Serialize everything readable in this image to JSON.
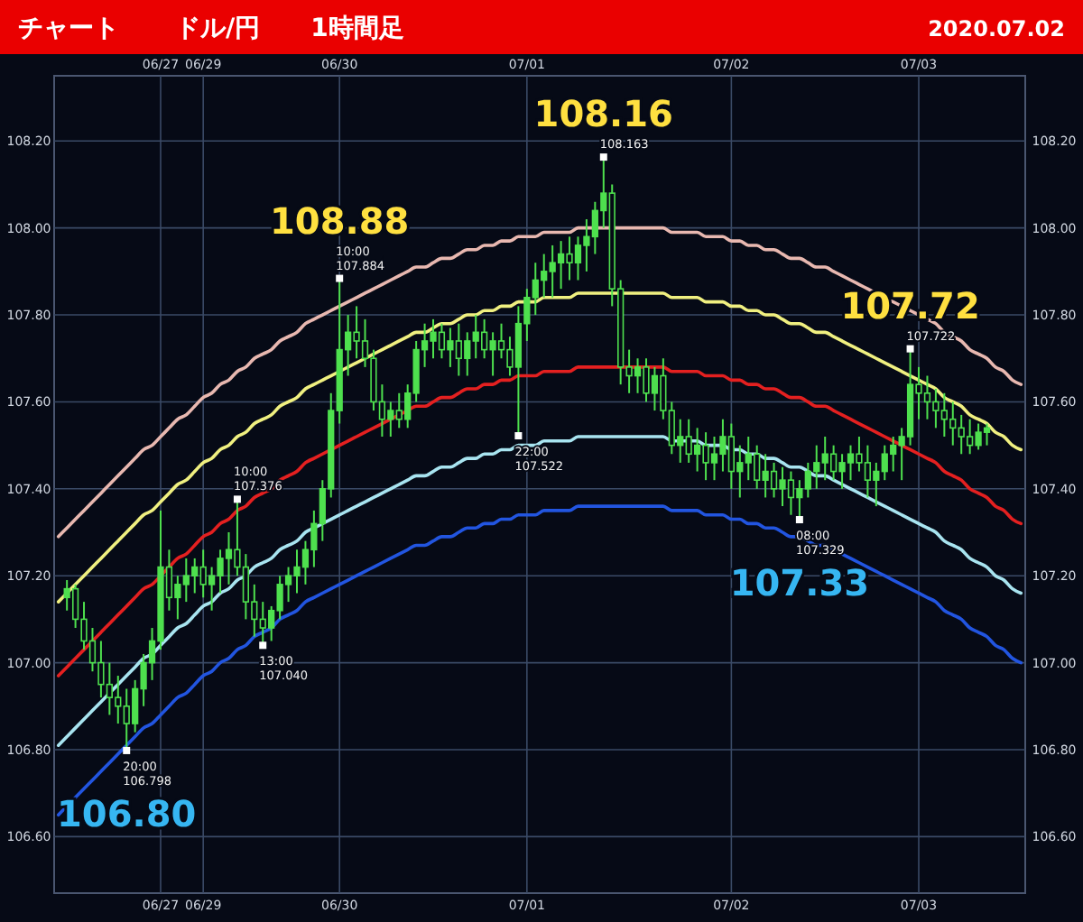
{
  "chart_data": {
    "type": "candlestick",
    "title": "チャート",
    "subtitle": "ドル/円　　1時間足",
    "color": "#4ee04e",
    "grid": true,
    "categories": [
      null,
      null,
      null,
      null,
      null,
      null,
      null,
      null,
      null,
      null,
      null,
      null,
      "06/27",
      null,
      null,
      null,
      null,
      "06/29",
      null,
      null,
      null,
      null,
      null,
      null,
      null,
      null,
      null,
      null,
      null,
      null,
      null,
      null,
      null,
      "06/30",
      null,
      null,
      null,
      null,
      null,
      null,
      null,
      null,
      null,
      null,
      null,
      null,
      null,
      null,
      null,
      null,
      null,
      null,
      null,
      null,
      null,
      "07/01",
      null,
      null,
      null,
      null,
      null,
      null,
      null,
      null,
      null,
      null,
      null,
      null,
      null,
      null,
      null,
      null,
      null,
      null,
      null,
      null,
      null,
      null,
      null,
      "07/02",
      null,
      null,
      null,
      null,
      null,
      null,
      null,
      null,
      null,
      null,
      null,
      null,
      null,
      null,
      null,
      null,
      null,
      null,
      null,
      null,
      null,
      "07/03",
      null,
      null,
      null,
      null,
      null,
      null,
      null,
      null,
      null,
      null,
      null,
      null
    ],
    "ylim": [
      106.47,
      108.35
    ],
    "yticks": [
      {
        "value": 106.6,
        "label": "106.60"
      },
      {
        "value": 106.8,
        "label": "106.80"
      },
      {
        "value": 107,
        "label": "107.00"
      },
      {
        "value": 107.2,
        "label": "107.20"
      },
      {
        "value": 107.4,
        "label": "107.40"
      },
      {
        "value": 107.6,
        "label": "107.60"
      },
      {
        "value": 107.8,
        "label": "107.80"
      },
      {
        "value": 108,
        "label": "108.00"
      },
      {
        "value": 108.2,
        "label": "108.20"
      }
    ],
    "y2lim": [
      106.47,
      108.35
    ],
    "y2ticks": [
      {
        "value": 106.6,
        "label": "106.60"
      },
      {
        "value": 106.8,
        "label": "106.80"
      },
      {
        "value": 107,
        "label": "107.00"
      },
      {
        "value": 107.2,
        "label": "107.20"
      },
      {
        "value": 107.4,
        "label": "107.40"
      },
      {
        "value": 107.6,
        "label": "107.60"
      },
      {
        "value": 107.8,
        "label": "107.80"
      },
      {
        "value": 108,
        "label": "108.00"
      },
      {
        "value": 108.2,
        "label": "108.20"
      }
    ],
    "ohlc": [
      null,
      [
        107.15,
        107.19,
        107.12,
        107.17
      ],
      [
        107.17,
        107.18,
        107.08,
        107.1
      ],
      [
        107.1,
        107.14,
        107.03,
        107.05
      ],
      [
        107.05,
        107.08,
        106.98,
        107.0
      ],
      [
        107.0,
        107.05,
        106.92,
        106.95
      ],
      [
        106.95,
        107.0,
        106.88,
        106.92
      ],
      [
        106.92,
        106.97,
        106.86,
        106.9
      ],
      [
        106.9,
        106.94,
        106.798,
        106.86
      ],
      [
        106.86,
        106.96,
        106.84,
        106.94
      ],
      [
        106.94,
        107.02,
        106.9,
        107.0
      ],
      [
        107.0,
        107.08,
        106.96,
        107.05
      ],
      [
        107.05,
        107.35,
        107.03,
        107.22
      ],
      [
        107.22,
        107.26,
        107.12,
        107.15
      ],
      [
        107.15,
        107.2,
        107.1,
        107.18
      ],
      [
        107.18,
        107.24,
        107.14,
        107.2
      ],
      [
        107.2,
        107.24,
        107.16,
        107.22
      ],
      [
        107.22,
        107.26,
        107.15,
        107.18
      ],
      [
        107.18,
        107.22,
        107.12,
        107.2
      ],
      [
        107.2,
        107.26,
        107.16,
        107.24
      ],
      [
        107.24,
        107.3,
        107.18,
        107.26
      ],
      [
        107.26,
        107.376,
        107.2,
        107.22
      ],
      [
        107.22,
        107.25,
        107.1,
        107.14
      ],
      [
        107.14,
        107.18,
        107.06,
        107.1
      ],
      [
        107.1,
        107.14,
        107.04,
        107.08
      ],
      [
        107.08,
        107.13,
        107.05,
        107.12
      ],
      [
        107.12,
        107.2,
        107.1,
        107.18
      ],
      [
        107.18,
        107.22,
        107.14,
        107.2
      ],
      [
        107.2,
        107.26,
        107.16,
        107.22
      ],
      [
        107.22,
        107.28,
        107.18,
        107.26
      ],
      [
        107.26,
        107.35,
        107.22,
        107.32
      ],
      [
        107.32,
        107.42,
        107.28,
        107.4
      ],
      [
        107.4,
        107.62,
        107.38,
        107.58
      ],
      [
        107.58,
        107.884,
        107.55,
        107.72
      ],
      [
        107.72,
        107.8,
        107.66,
        107.76
      ],
      [
        107.76,
        107.82,
        107.7,
        107.74
      ],
      [
        107.74,
        107.79,
        107.68,
        107.7
      ],
      [
        107.7,
        107.72,
        107.58,
        107.6
      ],
      [
        107.6,
        107.64,
        107.52,
        107.56
      ],
      [
        107.56,
        107.6,
        107.52,
        107.58
      ],
      [
        107.58,
        107.62,
        107.54,
        107.56
      ],
      [
        107.56,
        107.64,
        107.54,
        107.62
      ],
      [
        107.62,
        107.74,
        107.6,
        107.72
      ],
      [
        107.72,
        107.78,
        107.68,
        107.74
      ],
      [
        107.74,
        107.79,
        107.7,
        107.76
      ],
      [
        107.76,
        107.78,
        107.7,
        107.72
      ],
      [
        107.72,
        107.77,
        107.68,
        107.74
      ],
      [
        107.74,
        107.78,
        107.66,
        107.7
      ],
      [
        107.7,
        107.76,
        107.66,
        107.74
      ],
      [
        107.74,
        107.8,
        107.7,
        107.76
      ],
      [
        107.76,
        107.79,
        107.7,
        107.72
      ],
      [
        107.72,
        107.76,
        107.66,
        107.74
      ],
      [
        107.74,
        107.78,
        107.7,
        107.72
      ],
      [
        107.72,
        107.75,
        107.66,
        107.68
      ],
      [
        107.68,
        107.82,
        107.522,
        107.78
      ],
      [
        107.78,
        107.86,
        107.74,
        107.84
      ],
      [
        107.84,
        107.92,
        107.8,
        107.88
      ],
      [
        107.88,
        107.94,
        107.84,
        107.9
      ],
      [
        107.9,
        107.96,
        107.84,
        107.92
      ],
      [
        107.92,
        107.97,
        107.86,
        107.94
      ],
      [
        107.94,
        107.98,
        107.88,
        107.92
      ],
      [
        107.92,
        107.98,
        107.88,
        107.96
      ],
      [
        107.96,
        108.02,
        107.9,
        107.98
      ],
      [
        107.98,
        108.06,
        107.94,
        108.04
      ],
      [
        108.04,
        108.163,
        108.0,
        108.08
      ],
      [
        108.08,
        108.1,
        107.82,
        107.86
      ],
      [
        107.86,
        107.88,
        107.64,
        107.68
      ],
      [
        107.68,
        107.72,
        107.62,
        107.66
      ],
      [
        107.66,
        107.7,
        107.62,
        107.68
      ],
      [
        107.68,
        107.7,
        107.6,
        107.62
      ],
      [
        107.62,
        107.68,
        107.58,
        107.66
      ],
      [
        107.66,
        107.7,
        107.56,
        107.58
      ],
      [
        107.58,
        107.6,
        107.48,
        107.5
      ],
      [
        107.5,
        107.56,
        107.46,
        107.52
      ],
      [
        107.52,
        107.56,
        107.46,
        107.48
      ],
      [
        107.48,
        107.54,
        107.44,
        107.5
      ],
      [
        107.5,
        107.53,
        107.42,
        107.46
      ],
      [
        107.46,
        107.52,
        107.42,
        107.48
      ],
      [
        107.48,
        107.56,
        107.44,
        107.52
      ],
      [
        107.52,
        107.55,
        107.4,
        107.44
      ],
      [
        107.44,
        107.5,
        107.38,
        107.46
      ],
      [
        107.46,
        107.52,
        107.42,
        107.48
      ],
      [
        107.48,
        107.5,
        107.4,
        107.42
      ],
      [
        107.42,
        107.48,
        107.38,
        107.44
      ],
      [
        107.44,
        107.46,
        107.38,
        107.4
      ],
      [
        107.4,
        107.45,
        107.36,
        107.42
      ],
      [
        107.42,
        107.44,
        107.34,
        107.38
      ],
      [
        107.38,
        107.42,
        107.329,
        107.4
      ],
      [
        107.4,
        107.46,
        107.38,
        107.44
      ],
      [
        107.44,
        107.5,
        107.4,
        107.46
      ],
      [
        107.46,
        107.52,
        107.42,
        107.48
      ],
      [
        107.48,
        107.5,
        107.42,
        107.44
      ],
      [
        107.44,
        107.48,
        107.4,
        107.46
      ],
      [
        107.46,
        107.5,
        107.42,
        107.48
      ],
      [
        107.48,
        107.52,
        107.44,
        107.46
      ],
      [
        107.46,
        107.5,
        107.38,
        107.42
      ],
      [
        107.42,
        107.46,
        107.36,
        107.44
      ],
      [
        107.44,
        107.5,
        107.42,
        107.48
      ],
      [
        107.48,
        107.52,
        107.44,
        107.5
      ],
      [
        107.5,
        107.54,
        107.42,
        107.52
      ],
      [
        107.52,
        107.722,
        107.5,
        107.64
      ],
      [
        107.64,
        107.68,
        107.56,
        107.62
      ],
      [
        107.62,
        107.66,
        107.56,
        107.6
      ],
      [
        107.6,
        107.63,
        107.54,
        107.58
      ],
      [
        107.58,
        107.62,
        107.52,
        107.56
      ],
      [
        107.56,
        107.6,
        107.5,
        107.54
      ],
      [
        107.54,
        107.57,
        107.48,
        107.52
      ],
      [
        107.52,
        107.56,
        107.48,
        107.5
      ],
      [
        107.5,
        107.55,
        107.49,
        107.53
      ],
      [
        107.53,
        107.55,
        107.5,
        107.54
      ],
      null,
      null,
      null,
      null
    ],
    "series": [
      {
        "type": "line",
        "color": "#e8b8b0",
        "values": [
          107.29,
          107.31,
          107.33,
          107.35,
          107.37,
          107.39,
          107.41,
          107.43,
          107.45,
          107.47,
          107.49,
          107.5,
          107.52,
          107.54,
          107.56,
          107.57,
          107.59,
          107.61,
          107.62,
          107.64,
          107.65,
          107.67,
          107.68,
          107.7,
          107.71,
          107.72,
          107.74,
          107.75,
          107.76,
          107.78,
          107.79,
          107.8,
          107.81,
          107.82,
          107.83,
          107.84,
          107.85,
          107.86,
          107.87,
          107.88,
          107.89,
          107.9,
          107.91,
          107.91,
          107.92,
          107.93,
          107.93,
          107.94,
          107.95,
          107.95,
          107.96,
          107.96,
          107.97,
          107.97,
          107.98,
          107.98,
          107.98,
          107.99,
          107.99,
          107.99,
          107.99,
          108.0,
          108.0,
          108.0,
          108.0,
          108.0,
          108.0,
          108.0,
          108.0,
          108.0,
          108.0,
          108.0,
          107.99,
          107.99,
          107.99,
          107.99,
          107.98,
          107.98,
          107.98,
          107.97,
          107.97,
          107.96,
          107.96,
          107.95,
          107.95,
          107.94,
          107.93,
          107.93,
          107.92,
          107.91,
          107.91,
          107.9,
          107.89,
          107.88,
          107.87,
          107.86,
          107.85,
          107.84,
          107.83,
          107.82,
          107.81,
          107.8,
          107.79,
          107.78,
          107.76,
          107.75,
          107.74,
          107.72,
          107.71,
          107.7,
          107.68,
          107.67,
          107.65,
          107.64
        ]
      },
      {
        "type": "line",
        "color": "#f0f080",
        "values": [
          107.14,
          107.16,
          107.18,
          107.2,
          107.22,
          107.24,
          107.26,
          107.28,
          107.3,
          107.32,
          107.34,
          107.35,
          107.37,
          107.39,
          107.41,
          107.42,
          107.44,
          107.46,
          107.47,
          107.49,
          107.5,
          107.52,
          107.53,
          107.55,
          107.56,
          107.57,
          107.59,
          107.6,
          107.61,
          107.63,
          107.64,
          107.65,
          107.66,
          107.67,
          107.68,
          107.69,
          107.7,
          107.71,
          107.72,
          107.73,
          107.74,
          107.75,
          107.76,
          107.76,
          107.77,
          107.78,
          107.78,
          107.79,
          107.8,
          107.8,
          107.81,
          107.81,
          107.82,
          107.82,
          107.83,
          107.83,
          107.83,
          107.84,
          107.84,
          107.84,
          107.84,
          107.85,
          107.85,
          107.85,
          107.85,
          107.85,
          107.85,
          107.85,
          107.85,
          107.85,
          107.85,
          107.85,
          107.84,
          107.84,
          107.84,
          107.84,
          107.83,
          107.83,
          107.83,
          107.82,
          107.82,
          107.81,
          107.81,
          107.8,
          107.8,
          107.79,
          107.78,
          107.78,
          107.77,
          107.76,
          107.76,
          107.75,
          107.74,
          107.73,
          107.72,
          107.71,
          107.7,
          107.69,
          107.68,
          107.67,
          107.66,
          107.65,
          107.64,
          107.63,
          107.61,
          107.6,
          107.59,
          107.57,
          107.56,
          107.55,
          107.53,
          107.52,
          107.5,
          107.49
        ]
      },
      {
        "type": "line",
        "color": "#e42020",
        "values": [
          106.97,
          106.99,
          107.01,
          107.03,
          107.05,
          107.07,
          107.09,
          107.11,
          107.13,
          107.15,
          107.17,
          107.18,
          107.2,
          107.22,
          107.24,
          107.25,
          107.27,
          107.29,
          107.3,
          107.32,
          107.33,
          107.35,
          107.36,
          107.38,
          107.39,
          107.4,
          107.42,
          107.43,
          107.44,
          107.46,
          107.47,
          107.48,
          107.49,
          107.5,
          107.51,
          107.52,
          107.53,
          107.54,
          107.55,
          107.56,
          107.57,
          107.58,
          107.59,
          107.59,
          107.6,
          107.61,
          107.61,
          107.62,
          107.63,
          107.63,
          107.64,
          107.64,
          107.65,
          107.65,
          107.66,
          107.66,
          107.66,
          107.67,
          107.67,
          107.67,
          107.67,
          107.68,
          107.68,
          107.68,
          107.68,
          107.68,
          107.68,
          107.68,
          107.68,
          107.68,
          107.68,
          107.68,
          107.67,
          107.67,
          107.67,
          107.67,
          107.66,
          107.66,
          107.66,
          107.65,
          107.65,
          107.64,
          107.64,
          107.63,
          107.63,
          107.62,
          107.61,
          107.61,
          107.6,
          107.59,
          107.59,
          107.58,
          107.57,
          107.56,
          107.55,
          107.54,
          107.53,
          107.52,
          107.51,
          107.5,
          107.49,
          107.48,
          107.47,
          107.46,
          107.44,
          107.43,
          107.42,
          107.4,
          107.39,
          107.38,
          107.36,
          107.35,
          107.33,
          107.32
        ]
      },
      {
        "type": "line",
        "color": "#a8e4f0",
        "values": [
          106.81,
          106.83,
          106.85,
          106.87,
          106.89,
          106.91,
          106.93,
          106.95,
          106.97,
          106.99,
          107.01,
          107.02,
          107.04,
          107.06,
          107.08,
          107.09,
          107.11,
          107.13,
          107.14,
          107.16,
          107.17,
          107.19,
          107.2,
          107.22,
          107.23,
          107.24,
          107.26,
          107.27,
          107.28,
          107.3,
          107.31,
          107.32,
          107.33,
          107.34,
          107.35,
          107.36,
          107.37,
          107.38,
          107.39,
          107.4,
          107.41,
          107.42,
          107.43,
          107.43,
          107.44,
          107.45,
          107.45,
          107.46,
          107.47,
          107.47,
          107.48,
          107.48,
          107.49,
          107.49,
          107.5,
          107.5,
          107.5,
          107.51,
          107.51,
          107.51,
          107.51,
          107.52,
          107.52,
          107.52,
          107.52,
          107.52,
          107.52,
          107.52,
          107.52,
          107.52,
          107.52,
          107.52,
          107.51,
          107.51,
          107.51,
          107.51,
          107.5,
          107.5,
          107.5,
          107.49,
          107.49,
          107.48,
          107.48,
          107.47,
          107.47,
          107.46,
          107.45,
          107.45,
          107.44,
          107.43,
          107.43,
          107.42,
          107.41,
          107.4,
          107.39,
          107.38,
          107.37,
          107.36,
          107.35,
          107.34,
          107.33,
          107.32,
          107.31,
          107.3,
          107.28,
          107.27,
          107.26,
          107.24,
          107.23,
          107.22,
          107.2,
          107.19,
          107.17,
          107.16
        ]
      },
      {
        "type": "line",
        "color": "#2255e0",
        "values": [
          106.65,
          106.67,
          106.69,
          106.71,
          106.73,
          106.75,
          106.77,
          106.79,
          106.81,
          106.83,
          106.85,
          106.86,
          106.88,
          106.9,
          106.92,
          106.93,
          106.95,
          106.97,
          106.98,
          107.0,
          107.01,
          107.03,
          107.04,
          107.06,
          107.07,
          107.08,
          107.1,
          107.11,
          107.12,
          107.14,
          107.15,
          107.16,
          107.17,
          107.18,
          107.19,
          107.2,
          107.21,
          107.22,
          107.23,
          107.24,
          107.25,
          107.26,
          107.27,
          107.27,
          107.28,
          107.29,
          107.29,
          107.3,
          107.31,
          107.31,
          107.32,
          107.32,
          107.33,
          107.33,
          107.34,
          107.34,
          107.34,
          107.35,
          107.35,
          107.35,
          107.35,
          107.36,
          107.36,
          107.36,
          107.36,
          107.36,
          107.36,
          107.36,
          107.36,
          107.36,
          107.36,
          107.36,
          107.35,
          107.35,
          107.35,
          107.35,
          107.34,
          107.34,
          107.34,
          107.33,
          107.33,
          107.32,
          107.32,
          107.31,
          107.31,
          107.3,
          107.29,
          107.29,
          107.28,
          107.27,
          107.27,
          107.26,
          107.25,
          107.24,
          107.23,
          107.22,
          107.21,
          107.2,
          107.19,
          107.18,
          107.17,
          107.16,
          107.15,
          107.14,
          107.12,
          107.11,
          107.1,
          107.08,
          107.07,
          107.06,
          107.04,
          107.03,
          107.01,
          107.0
        ]
      }
    ],
    "annotations": [
      "20:00\n106.798",
      {
        "text": "106.80",
        "y": 106.798
      },
      {
        "text": "10:00\n107.376",
        "y": 107.376
      },
      "13:00\n107.040",
      "10:00\n107.884",
      {
        "text": "108.88",
        "y": 107.884
      },
      {
        "text": "22:00\n107.522",
        "y": 107.522
      },
      "108.163",
      {
        "text": "108.16",
        "y": 108.163
      },
      "08:00\n107.329",
      {
        "text": "107.33",
        "y": 107.329
      },
      "107.722",
      {
        "text": "107.72",
        "y": 107.722
      },
      "2020.07.02"
    ]
  }
}
